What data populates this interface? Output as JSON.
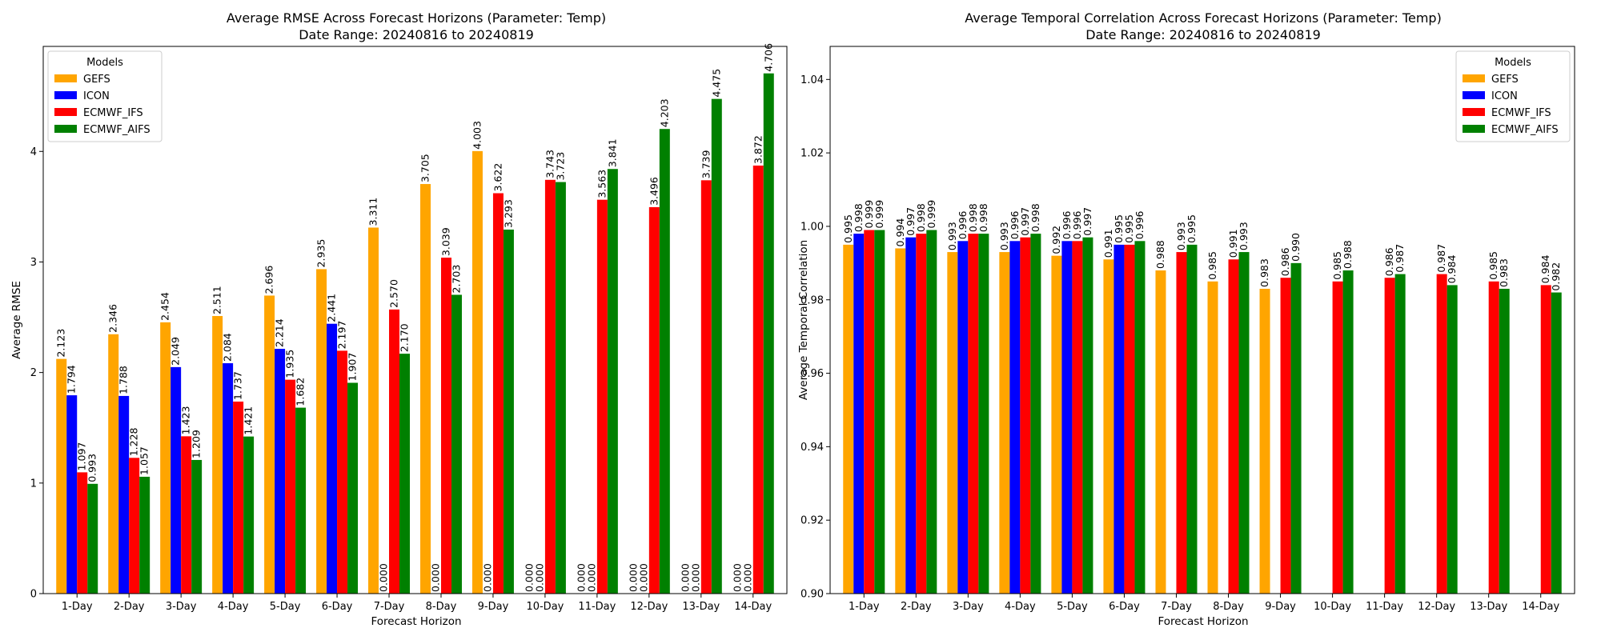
{
  "chart_data": [
    {
      "type": "bar",
      "title": "Average RMSE Across Forecast Horizons (Parameter: Temp)",
      "subtitle": "Date Range: 20240816 to 20240819",
      "xlabel": "Forecast Horizon",
      "ylabel": "Average RMSE",
      "ylim": [
        0,
        4.95
      ],
      "yticks": [
        0,
        1,
        2,
        3,
        4
      ],
      "grid": false,
      "legend": {
        "title": "Models",
        "placement": "top-left"
      },
      "categories": [
        "1-Day",
        "2-Day",
        "3-Day",
        "4-Day",
        "5-Day",
        "6-Day",
        "7-Day",
        "8-Day",
        "9-Day",
        "10-Day",
        "11-Day",
        "12-Day",
        "13-Day",
        "14-Day"
      ],
      "series": [
        {
          "name": "GEFS",
          "color": "#FFA500",
          "values": [
            2.123,
            2.346,
            2.454,
            2.511,
            2.696,
            2.935,
            3.311,
            3.705,
            4.003,
            0,
            0,
            0,
            0,
            0
          ],
          "labels": [
            "2.123",
            "2.346",
            "2.454",
            "2.511",
            "2.696",
            "2.935",
            "3.311",
            "3.705",
            "4.003",
            "0.000",
            "0.000",
            "0.000",
            "0.000",
            "0.000"
          ]
        },
        {
          "name": "ICON",
          "color": "#0000FF",
          "values": [
            1.794,
            1.788,
            2.049,
            2.084,
            2.214,
            2.441,
            0,
            0,
            0,
            0,
            0,
            0,
            0,
            0
          ],
          "labels": [
            "1.794",
            "1.788",
            "2.049",
            "2.084",
            "2.214",
            "2.441",
            "0.000",
            "0.000",
            "0.000",
            "0.000",
            "0.000",
            "0.000",
            "0.000",
            "0.000"
          ]
        },
        {
          "name": "ECMWF_IFS",
          "color": "#FF0000",
          "values": [
            1.097,
            1.228,
            1.423,
            1.737,
            1.935,
            2.197,
            2.57,
            3.039,
            3.622,
            3.743,
            3.563,
            3.496,
            3.739,
            3.872
          ],
          "labels": [
            "1.097",
            "1.228",
            "1.423",
            "1.737",
            "1.935",
            "2.197",
            "2.570",
            "3.039",
            "3.622",
            "3.743",
            "3.563",
            "3.496",
            "3.739",
            "3.872"
          ]
        },
        {
          "name": "ECMWF_AIFS",
          "color": "#008000",
          "values": [
            0.993,
            1.057,
            1.209,
            1.421,
            1.682,
            1.907,
            2.17,
            2.703,
            3.293,
            3.723,
            3.841,
            4.203,
            4.475,
            4.706
          ],
          "labels": [
            "0.993",
            "1.057",
            "1.209",
            "1.421",
            "1.682",
            "1.907",
            "2.170",
            "2.703",
            "3.293",
            "3.723",
            "3.841",
            "4.203",
            "4.475",
            "4.706"
          ]
        }
      ]
    },
    {
      "type": "bar",
      "title": "Average Temporal Correlation Across Forecast Horizons (Parameter: Temp)",
      "subtitle": "Date Range: 20240816 to 20240819",
      "xlabel": "Forecast Horizon",
      "ylabel": "Average Temporal Correlation",
      "ylim": [
        0.9,
        1.049
      ],
      "yticks": [
        0.9,
        0.92,
        0.94,
        0.96,
        0.98,
        1.0,
        1.02,
        1.04
      ],
      "grid": false,
      "legend": {
        "title": "Models",
        "placement": "top-right"
      },
      "categories": [
        "1-Day",
        "2-Day",
        "3-Day",
        "4-Day",
        "5-Day",
        "6-Day",
        "7-Day",
        "8-Day",
        "9-Day",
        "10-Day",
        "11-Day",
        "12-Day",
        "13-Day",
        "14-Day"
      ],
      "series": [
        {
          "name": "GEFS",
          "color": "#FFA500",
          "values": [
            0.995,
            0.994,
            0.993,
            0.993,
            0.992,
            0.991,
            0.988,
            0.985,
            0.983,
            null,
            null,
            null,
            null,
            null
          ],
          "labels": [
            "0.995",
            "0.994",
            "0.993",
            "0.993",
            "0.992",
            "0.991",
            "0.988",
            "0.985",
            "0.983",
            null,
            null,
            null,
            null,
            null
          ]
        },
        {
          "name": "ICON",
          "color": "#0000FF",
          "values": [
            0.998,
            0.997,
            0.996,
            0.996,
            0.996,
            0.995,
            null,
            null,
            null,
            null,
            null,
            null,
            null,
            null
          ],
          "labels": [
            "0.998",
            "0.997",
            "0.996",
            "0.996",
            "0.996",
            "0.995",
            null,
            null,
            null,
            null,
            null,
            null,
            null,
            null
          ]
        },
        {
          "name": "ECMWF_IFS",
          "color": "#FF0000",
          "values": [
            0.999,
            0.998,
            0.998,
            0.997,
            0.996,
            0.995,
            0.993,
            0.991,
            0.986,
            0.985,
            0.986,
            0.987,
            0.985,
            0.984
          ],
          "labels": [
            "0.999",
            "0.998",
            "0.998",
            "0.997",
            "0.996",
            "0.995",
            "0.993",
            "0.991",
            "0.986",
            "0.985",
            "0.986",
            "0.987",
            "0.985",
            "0.984"
          ]
        },
        {
          "name": "ECMWF_AIFS",
          "color": "#008000",
          "values": [
            0.999,
            0.999,
            0.998,
            0.998,
            0.997,
            0.996,
            0.995,
            0.993,
            0.99,
            0.988,
            0.987,
            0.984,
            0.983,
            0.982
          ],
          "labels": [
            "0.999",
            "0.999",
            "0.998",
            "0.998",
            "0.997",
            "0.996",
            "0.995",
            "0.993",
            "0.990",
            "0.988",
            "0.987",
            "0.984",
            "0.983",
            "0.982"
          ]
        }
      ]
    }
  ]
}
